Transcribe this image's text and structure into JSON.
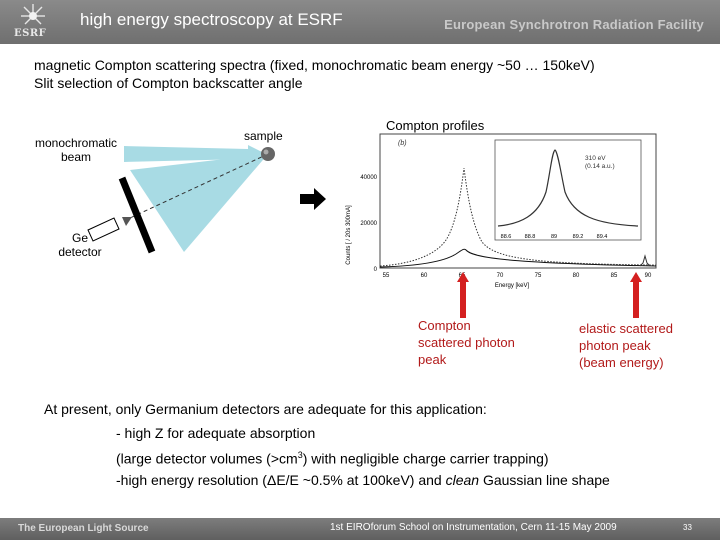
{
  "header": {
    "logo_text": "ESRF",
    "title": "high energy spectroscopy at ESRF",
    "facility": "European Synchrotron Radiation Facility"
  },
  "intro": {
    "line1": "magnetic Compton scattering spectra  (fixed, monochromatic beam energy ~50 … 150keV)",
    "line2": "Slit selection of Compton backscatter angle"
  },
  "diagram": {
    "beam_label_1": "monochromatic",
    "beam_label_2": "beam",
    "sample_label": "sample",
    "detector_label_1": "Ge",
    "detector_label_2": "detector"
  },
  "plot": {
    "heading": "Compton profiles",
    "panel_label": "(b)",
    "ylabel": "Counts [ / 20s 300mA]",
    "xlabel": "Energy [keV]",
    "y_ticks": [
      "0",
      "20000",
      "40000"
    ],
    "x_ticks": [
      "55",
      "60",
      "65",
      "70",
      "75",
      "80",
      "85",
      "90"
    ],
    "inset_ticks": [
      "88.6",
      "88.8",
      "89",
      "89.2",
      "89.4"
    ],
    "inset_note_1": "310 eV",
    "inset_note_2": "(0.14 a.u.)"
  },
  "annotations": {
    "compton_1": "Compton",
    "compton_2": "scattered photon",
    "compton_3": "peak",
    "elastic_1": "elastic  scattered",
    "elastic_2": "photon peak",
    "elastic_3": "(beam energy)",
    "arrow_color": "#d42020"
  },
  "body": {
    "present": "At present, only Germanium detectors are adequate for this application:",
    "bullet1": "- high Z for adequate absorption",
    "bullet2_a": "(large detector volumes (>cm",
    "bullet2_sup": "3",
    "bullet2_b": ") with negligible charge carrier trapping)",
    "bullet3_a": "-high energy resolution (ΔE/E ~0.5% at 100keV) and ",
    "bullet3_em": "clean",
    "bullet3_b": " Gaussian line shape"
  },
  "footer": {
    "left": "The European Light Source",
    "center": "1st EIROforum School on Instrumentation, Cern 11-15 May 2009",
    "page": "33"
  }
}
